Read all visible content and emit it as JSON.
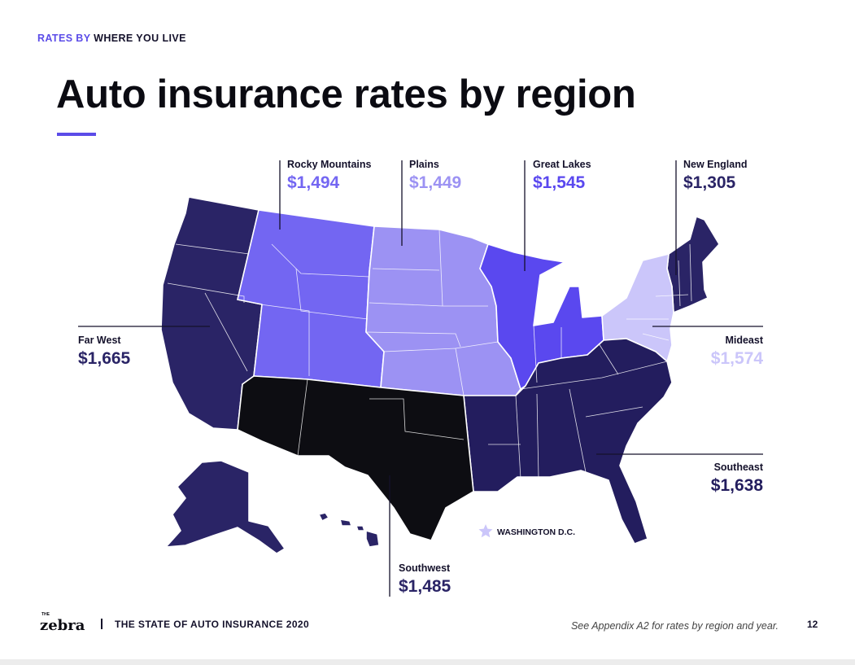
{
  "header": {
    "eyebrow_accent": "RATES BY",
    "eyebrow_rest": "WHERE YOU LIVE",
    "title": "Auto insurance rates by region"
  },
  "colors": {
    "far_west": "#2a2466",
    "rocky_mountains": "#7366f2",
    "plains": "#9c92f3",
    "great_lakes": "#5a48ef",
    "new_england": "#2a2466",
    "mideast": "#cbc6fa",
    "southeast": "#231d5e",
    "southwest": "#0d0d12"
  },
  "regions": {
    "rocky_mountains": {
      "name": "Rocky Mountains",
      "rate": "$1,494"
    },
    "plains": {
      "name": "Plains",
      "rate": "$1,449"
    },
    "great_lakes": {
      "name": "Great Lakes",
      "rate": "$1,545"
    },
    "new_england": {
      "name": "New England",
      "rate": "$1,305"
    },
    "far_west": {
      "name": "Far West",
      "rate": "$1,665"
    },
    "mideast": {
      "name": "Mideast",
      "rate": "$1,574"
    },
    "southeast": {
      "name": "Southeast",
      "rate": "$1,638"
    },
    "southwest": {
      "name": "Southwest",
      "rate": "$1,485"
    }
  },
  "dc": {
    "label": "WASHINGTON D.C.",
    "icon": "star-icon"
  },
  "footer": {
    "logo_small": "THE",
    "logo": "zebra",
    "publication": "THE STATE OF AUTO INSURANCE 2020",
    "note": "See Appendix A2 for rates by region and year.",
    "page": "12"
  }
}
